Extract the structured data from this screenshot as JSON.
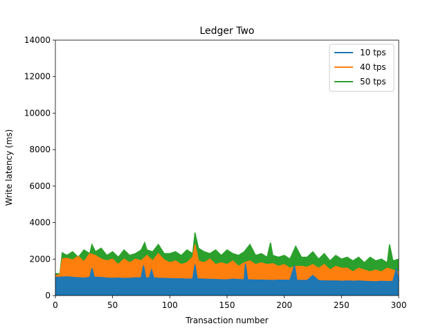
{
  "chart_data": {
    "type": "area",
    "title": "Ledger Two",
    "xlabel": "Transaction number",
    "ylabel": "Write latency (ms)",
    "xlim": [
      0,
      300
    ],
    "ylim": [
      0,
      14000
    ],
    "xticks": [
      0,
      50,
      100,
      150,
      200,
      250,
      300
    ],
    "yticks": [
      0,
      2000,
      4000,
      6000,
      8000,
      10000,
      12000,
      14000
    ],
    "grid": false,
    "legend_position": "top-right",
    "series": [
      {
        "name": "10 tps",
        "color": "#1f77b4",
        "x": [
          0,
          5,
          10,
          15,
          20,
          25,
          30,
          32,
          34,
          40,
          45,
          50,
          55,
          60,
          65,
          70,
          75,
          77,
          79,
          82,
          84,
          86,
          90,
          95,
          100,
          105,
          110,
          115,
          120,
          122,
          124,
          130,
          135,
          140,
          145,
          150,
          155,
          160,
          165,
          166,
          168,
          170,
          175,
          180,
          185,
          190,
          195,
          200,
          205,
          209,
          211,
          215,
          220,
          225,
          230,
          235,
          240,
          245,
          250,
          255,
          260,
          265,
          270,
          275,
          280,
          285,
          290,
          295,
          298,
          300
        ],
        "values": [
          1000,
          1010,
          1030,
          1000,
          980,
          960,
          990,
          1500,
          1010,
          990,
          960,
          950,
          960,
          940,
          950,
          970,
          980,
          1650,
          980,
          960,
          1400,
          970,
          950,
          940,
          930,
          920,
          920,
          900,
          910,
          1700,
          920,
          900,
          890,
          880,
          870,
          860,
          900,
          880,
          870,
          1750,
          870,
          860,
          850,
          850,
          840,
          830,
          850,
          840,
          850,
          1650,
          840,
          830,
          830,
          1100,
          820,
          810,
          800,
          800,
          790,
          800,
          790,
          800,
          780,
          770,
          760,
          780,
          770,
          780,
          1500,
          800
        ]
      },
      {
        "name": "40 tps",
        "color": "#ff7f0e",
        "x": [
          0,
          4,
          6,
          10,
          15,
          20,
          25,
          30,
          35,
          40,
          45,
          50,
          55,
          60,
          65,
          70,
          75,
          80,
          85,
          90,
          95,
          100,
          105,
          110,
          115,
          120,
          122,
          125,
          130,
          135,
          140,
          145,
          150,
          155,
          160,
          165,
          170,
          175,
          180,
          185,
          190,
          195,
          200,
          205,
          210,
          215,
          220,
          225,
          230,
          235,
          240,
          245,
          250,
          255,
          260,
          265,
          270,
          275,
          280,
          285,
          290,
          295,
          300
        ],
        "values": [
          1100,
          1150,
          2000,
          2050,
          1950,
          2150,
          1850,
          2300,
          2200,
          2000,
          1900,
          2000,
          1700,
          2000,
          1800,
          2000,
          1900,
          2200,
          1900,
          2300,
          1950,
          1800,
          1900,
          1700,
          1800,
          2100,
          2800,
          1900,
          1800,
          2000,
          1700,
          1800,
          1700,
          1900,
          1600,
          1800,
          1900,
          1700,
          1800,
          1700,
          1750,
          1600,
          1700,
          1500,
          1600,
          1600,
          1550,
          1700,
          1500,
          1700,
          1400,
          1600,
          1500,
          1500,
          1300,
          1500,
          1400,
          1300,
          1400,
          1300,
          1500,
          1400,
          1300
        ]
      },
      {
        "name": "50 tps",
        "color": "#2ca02c",
        "x": [
          0,
          4,
          6,
          10,
          15,
          20,
          25,
          30,
          32,
          35,
          40,
          45,
          50,
          55,
          60,
          65,
          70,
          75,
          78,
          80,
          85,
          90,
          95,
          100,
          105,
          110,
          115,
          120,
          122,
          125,
          130,
          135,
          140,
          145,
          150,
          155,
          160,
          165,
          170,
          175,
          180,
          185,
          188,
          190,
          195,
          200,
          205,
          210,
          215,
          220,
          225,
          230,
          235,
          240,
          245,
          250,
          255,
          260,
          265,
          270,
          275,
          280,
          285,
          290,
          292,
          295,
          300
        ],
        "values": [
          1200,
          1200,
          2350,
          2200,
          2400,
          2100,
          2500,
          2300,
          2800,
          2400,
          2600,
          2200,
          2400,
          2100,
          2500,
          2200,
          2300,
          2500,
          2900,
          2500,
          2400,
          2800,
          2300,
          2300,
          2400,
          2200,
          2500,
          2300,
          3450,
          2600,
          2400,
          2300,
          2500,
          2200,
          2500,
          2300,
          2200,
          2400,
          2800,
          2200,
          2300,
          2100,
          2900,
          2200,
          2100,
          2200,
          2000,
          2700,
          2100,
          2100,
          2400,
          2000,
          2300,
          1900,
          2200,
          2000,
          2100,
          1900,
          2100,
          1800,
          2100,
          1900,
          2000,
          1800,
          2800,
          1900,
          2000
        ]
      }
    ]
  }
}
